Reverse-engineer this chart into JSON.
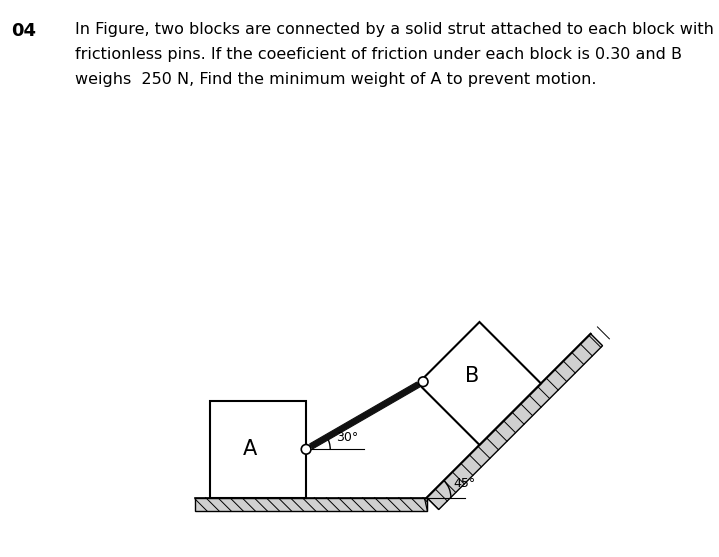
{
  "title_num": "04",
  "problem_text_line1": "In Figure, two blocks are connected by a solid strut attached to each block with",
  "problem_text_line2": "frictionless pins. If the coeeficient of friction under each block is 0.30 and B",
  "problem_text_line3": "weighs  250 N, Find the minimum weight of A to prevent motion.",
  "text_fontsize": 11.5,
  "title_fontsize": 13,
  "bg_color": "#ffffff",
  "label_A": "A",
  "label_B": "B",
  "label_30": "30°",
  "label_45": "45°"
}
